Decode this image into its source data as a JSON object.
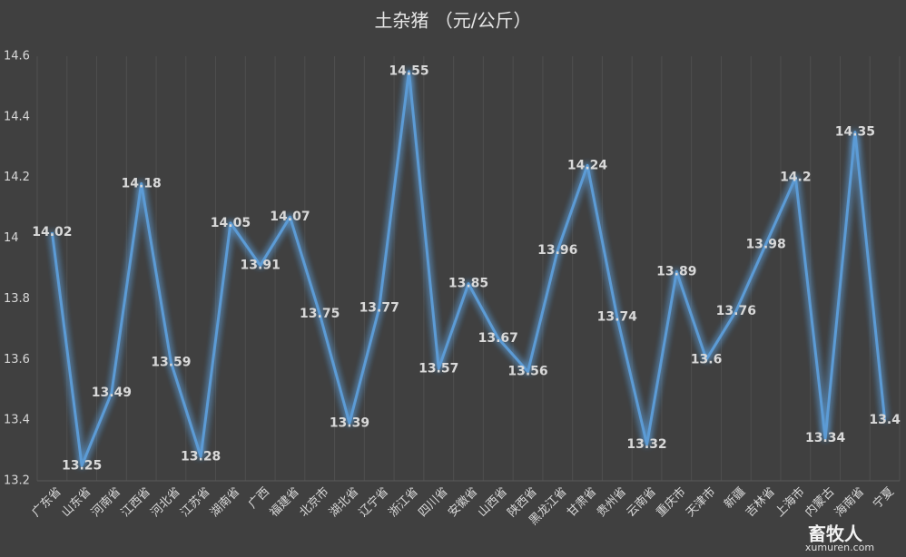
{
  "chart_data": {
    "type": "line",
    "title": "土杂猪 （元/公斤）",
    "categories": [
      "广东省",
      "山东省",
      "河南省",
      "江西省",
      "河北省",
      "江苏省",
      "湖南省",
      "广西",
      "福建省",
      "北京市",
      "湖北省",
      "辽宁省",
      "浙江省",
      "四川省",
      "安徽省",
      "山西省",
      "陕西省",
      "黑龙江省",
      "甘肃省",
      "贵州省",
      "云南省",
      "重庆市",
      "天津市",
      "新疆",
      "吉林省",
      "上海市",
      "内蒙古",
      "海南省",
      "宁夏"
    ],
    "values": [
      14.02,
      13.25,
      13.49,
      14.18,
      13.59,
      13.28,
      14.05,
      13.91,
      14.07,
      13.75,
      13.39,
      13.77,
      14.55,
      13.57,
      13.85,
      13.67,
      13.56,
      13.96,
      14.24,
      13.74,
      13.32,
      13.89,
      13.6,
      13.76,
      13.98,
      14.2,
      13.34,
      14.35,
      13.4
    ],
    "color": "#5b9bd5",
    "ylim": [
      13.2,
      14.6
    ],
    "yticks": [
      13.2,
      13.4,
      13.6,
      13.8,
      14,
      14.2,
      14.4,
      14.6
    ],
    "grid": "x",
    "watermark": [
      "畜牧人",
      "xumuren.com"
    ]
  }
}
